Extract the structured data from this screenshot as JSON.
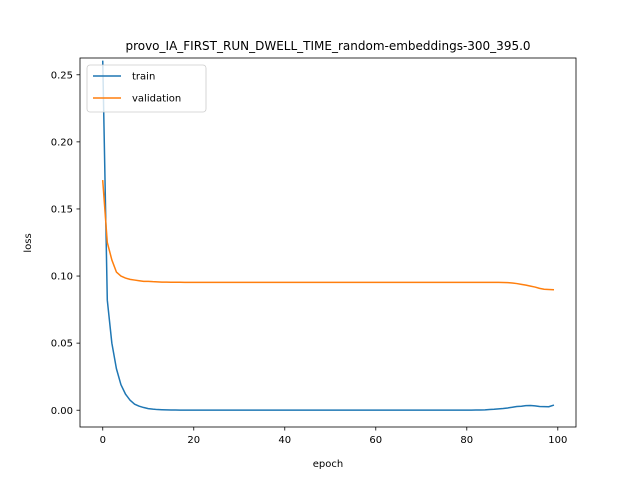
{
  "chart_data": {
    "type": "line",
    "title": "provo_IA_FIRST_RUN_DWELL_TIME_random-embeddings-300_395.0",
    "xlabel": "epoch",
    "ylabel": "loss",
    "xlim": [
      -5,
      104
    ],
    "ylim": [
      -0.0125,
      0.2625
    ],
    "xticks": [
      0,
      20,
      40,
      60,
      80,
      100
    ],
    "yticks": [
      0.0,
      0.05,
      0.1,
      0.15,
      0.2,
      0.25
    ],
    "xtick_labels": [
      "0",
      "20",
      "40",
      "60",
      "80",
      "100"
    ],
    "ytick_labels": [
      "0.00",
      "0.05",
      "0.10",
      "0.15",
      "0.20",
      "0.25"
    ],
    "grid": false,
    "legend_position": "upper-left",
    "series": [
      {
        "name": "train",
        "color": "#1f77b4",
        "x": [
          0,
          1,
          2,
          3,
          4,
          5,
          6,
          7,
          8,
          9,
          10,
          11,
          12,
          13,
          14,
          15,
          16,
          17,
          18,
          19,
          20,
          21,
          22,
          23,
          24,
          25,
          26,
          27,
          28,
          29,
          30,
          31,
          32,
          33,
          34,
          35,
          36,
          37,
          38,
          39,
          40,
          41,
          42,
          43,
          44,
          45,
          46,
          47,
          48,
          49,
          50,
          51,
          52,
          53,
          54,
          55,
          56,
          57,
          58,
          59,
          60,
          61,
          62,
          63,
          64,
          65,
          66,
          67,
          68,
          69,
          70,
          71,
          72,
          73,
          74,
          75,
          76,
          77,
          78,
          79,
          80,
          81,
          82,
          83,
          84,
          85,
          86,
          87,
          88,
          89,
          90,
          91,
          92,
          93,
          94,
          95,
          96,
          97,
          98,
          99
        ],
        "y": [
          0.26,
          0.082,
          0.05,
          0.031,
          0.019,
          0.012,
          0.0075,
          0.0045,
          0.003,
          0.002,
          0.0012,
          0.0008,
          0.0005,
          0.0004,
          0.0003,
          0.0002,
          0.0002,
          0.0001,
          0.0001,
          0.0001,
          0.0001,
          0.0001,
          0.0001,
          0.0001,
          0.0001,
          0.0001,
          0.0001,
          0.0001,
          0.0001,
          0.0001,
          0.0001,
          0.0001,
          0.0001,
          0.0001,
          0.0001,
          0.0001,
          0.0001,
          0.0001,
          0.0001,
          0.0001,
          0.0001,
          0.0001,
          0.0001,
          0.0001,
          0.0001,
          0.0001,
          0.0001,
          0.0001,
          0.0001,
          0.0001,
          0.0001,
          0.0001,
          0.0001,
          0.0001,
          0.0001,
          0.0001,
          0.0001,
          0.0001,
          0.0001,
          0.0001,
          0.0001,
          0.0001,
          0.0001,
          0.0001,
          0.0001,
          0.0001,
          0.0001,
          0.0001,
          0.0001,
          0.0001,
          0.0001,
          0.0001,
          0.0001,
          0.0001,
          0.0001,
          0.0001,
          0.0001,
          0.0001,
          0.0001,
          0.0001,
          0.0001,
          0.0001,
          0.0002,
          0.0002,
          0.0003,
          0.0005,
          0.0007,
          0.001,
          0.0013,
          0.0017,
          0.0022,
          0.0028,
          0.003,
          0.0034,
          0.0035,
          0.0032,
          0.0028,
          0.0027,
          0.0026,
          0.0037
        ]
      },
      {
        "name": "validation",
        "color": "#ff7f0e",
        "x": [
          0,
          1,
          2,
          3,
          4,
          5,
          6,
          7,
          8,
          9,
          10,
          11,
          12,
          13,
          14,
          15,
          16,
          17,
          18,
          19,
          20,
          21,
          22,
          23,
          24,
          25,
          26,
          27,
          28,
          29,
          30,
          31,
          32,
          33,
          34,
          35,
          36,
          37,
          38,
          39,
          40,
          41,
          42,
          43,
          44,
          45,
          46,
          47,
          48,
          49,
          50,
          51,
          52,
          53,
          54,
          55,
          56,
          57,
          58,
          59,
          60,
          61,
          62,
          63,
          64,
          65,
          66,
          67,
          68,
          69,
          70,
          71,
          72,
          73,
          74,
          75,
          76,
          77,
          78,
          79,
          80,
          81,
          82,
          83,
          84,
          85,
          86,
          87,
          88,
          89,
          90,
          91,
          92,
          93,
          94,
          95,
          96,
          97,
          98,
          99
        ],
        "y": [
          0.171,
          0.125,
          0.112,
          0.103,
          0.1,
          0.0985,
          0.0975,
          0.097,
          0.0965,
          0.096,
          0.096,
          0.0958,
          0.0957,
          0.0955,
          0.0955,
          0.0954,
          0.0954,
          0.0954,
          0.0953,
          0.0953,
          0.0953,
          0.0953,
          0.0953,
          0.0953,
          0.0953,
          0.0953,
          0.0953,
          0.0953,
          0.0953,
          0.0953,
          0.0953,
          0.0953,
          0.0953,
          0.0953,
          0.0953,
          0.0953,
          0.0953,
          0.0953,
          0.0953,
          0.0953,
          0.0953,
          0.0953,
          0.0953,
          0.0953,
          0.0953,
          0.0953,
          0.0953,
          0.0953,
          0.0953,
          0.0953,
          0.0953,
          0.0953,
          0.0953,
          0.0953,
          0.0953,
          0.0953,
          0.0953,
          0.0953,
          0.0953,
          0.0953,
          0.0953,
          0.0953,
          0.0953,
          0.0953,
          0.0953,
          0.0953,
          0.0953,
          0.0953,
          0.0953,
          0.0953,
          0.0953,
          0.0953,
          0.0953,
          0.0953,
          0.0953,
          0.0953,
          0.0953,
          0.0953,
          0.0953,
          0.0953,
          0.0953,
          0.0953,
          0.0953,
          0.0953,
          0.0953,
          0.0953,
          0.0953,
          0.0953,
          0.0952,
          0.0951,
          0.0948,
          0.0944,
          0.0938,
          0.0932,
          0.0925,
          0.0918,
          0.0908,
          0.0902,
          0.09,
          0.0898
        ]
      }
    ]
  }
}
